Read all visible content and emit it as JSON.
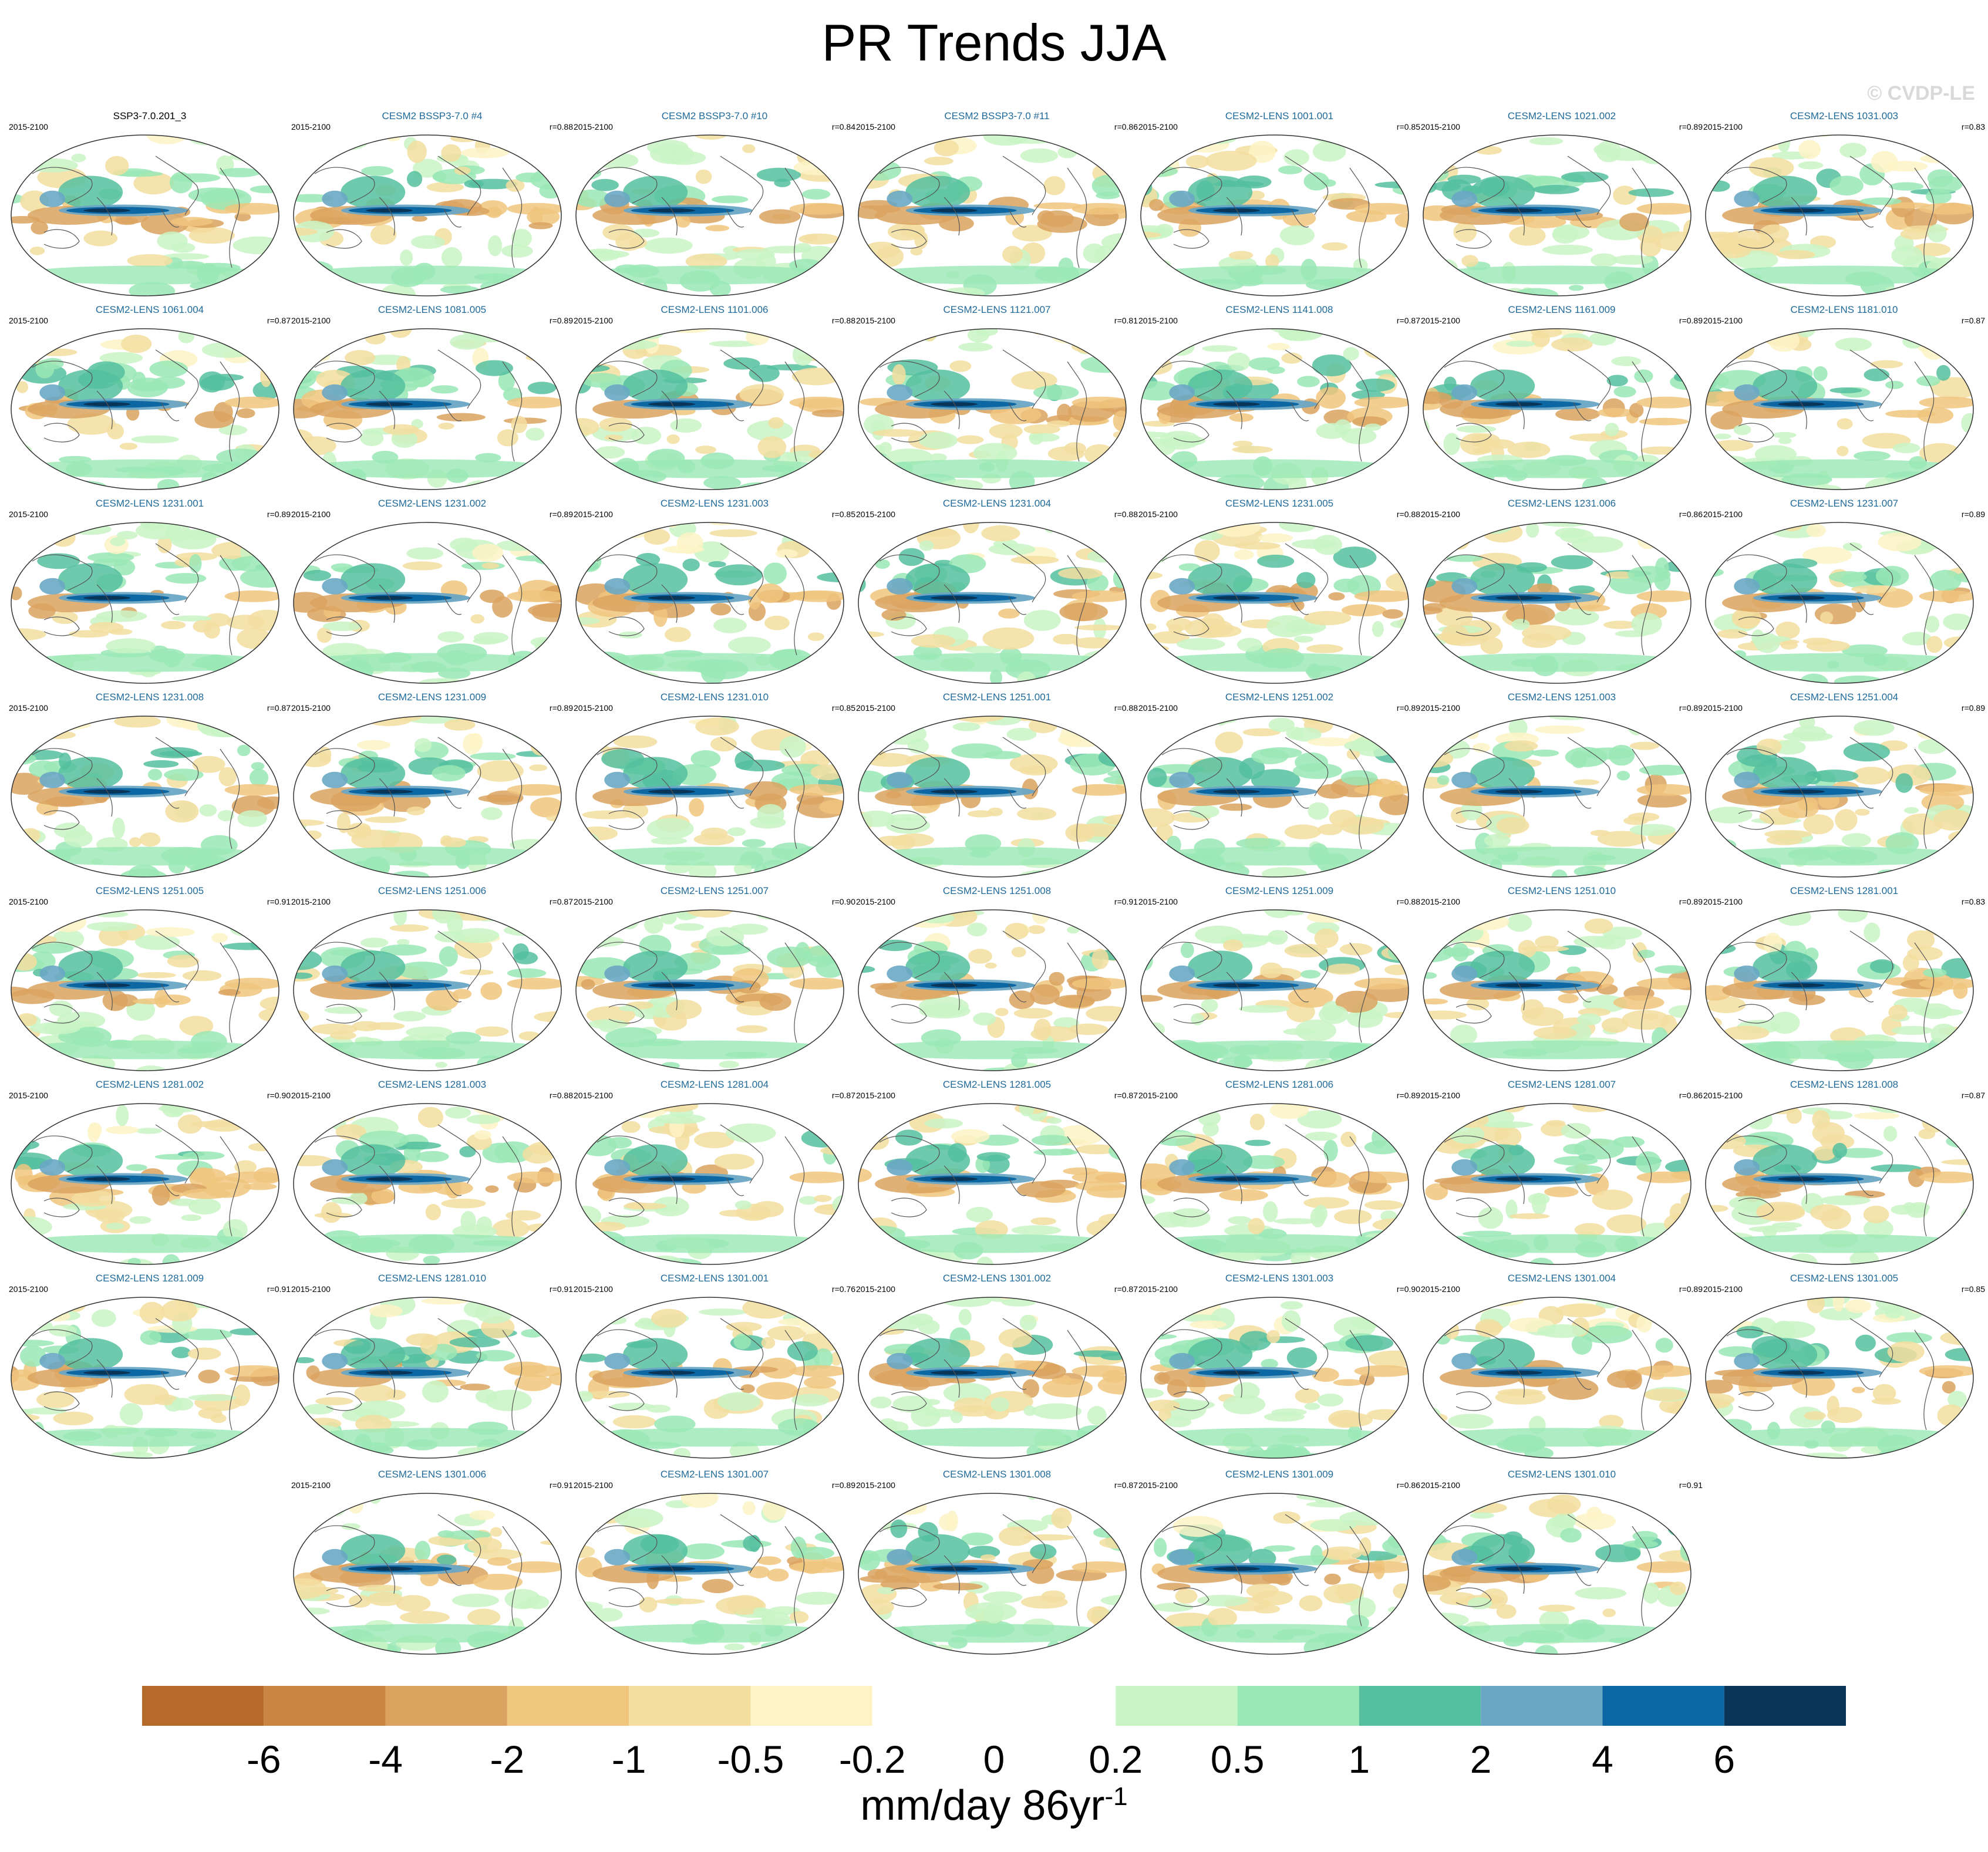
{
  "title": "PR Trends JJA",
  "watermark": "© CVDP-LE",
  "colorbar": {
    "unit": "mm/day 86yr",
    "unit_exp": "-1",
    "ticks": [
      "-6",
      "-4",
      "-2",
      "-1",
      "-0.5",
      "-0.2",
      "0",
      "0.2",
      "0.5",
      "1",
      "2",
      "4",
      "6"
    ],
    "colors": [
      "#b5692b",
      "#c98541",
      "#dba35f",
      "#f0c57e",
      "#f3dea0",
      "#fdf3c5",
      "#ffffff",
      "#ffffff",
      "#c9f5c6",
      "#9ae8b5",
      "#55bf9f",
      "#6aa7c4",
      "#0d67a3",
      "#083558"
    ]
  },
  "chart_data": {
    "type": "map-panel-grid",
    "title": "PR Trends JJA",
    "unit": "mm/day 86yr-1",
    "panels": [
      {
        "name": "SSP3-7.0.201_3",
        "period": "2015-2100",
        "r": "",
        "obs": true
      },
      {
        "name": "CESM2 BSSP3-7.0 #4",
        "period": "2015-2100",
        "r": "r=0.88"
      },
      {
        "name": "CESM2 BSSP3-7.0 #10",
        "period": "2015-2100",
        "r": "r=0.84"
      },
      {
        "name": "CESM2 BSSP3-7.0 #11",
        "period": "2015-2100",
        "r": "r=0.86"
      },
      {
        "name": "CESM2-LENS 1001.001",
        "period": "2015-2100",
        "r": "r=0.85"
      },
      {
        "name": "CESM2-LENS 1021.002",
        "period": "2015-2100",
        "r": "r=0.89"
      },
      {
        "name": "CESM2-LENS 1031.003",
        "period": "2015-2100",
        "r": "r=0.83"
      },
      {
        "name": "CESM2-LENS 1061.004",
        "period": "2015-2100",
        "r": "r=0.87"
      },
      {
        "name": "CESM2-LENS 1081.005",
        "period": "2015-2100",
        "r": "r=0.89"
      },
      {
        "name": "CESM2-LENS 1101.006",
        "period": "2015-2100",
        "r": "r=0.88"
      },
      {
        "name": "CESM2-LENS 1121.007",
        "period": "2015-2100",
        "r": "r=0.81"
      },
      {
        "name": "CESM2-LENS 1141.008",
        "period": "2015-2100",
        "r": "r=0.87"
      },
      {
        "name": "CESM2-LENS 1161.009",
        "period": "2015-2100",
        "r": "r=0.89"
      },
      {
        "name": "CESM2-LENS 1181.010",
        "period": "2015-2100",
        "r": "r=0.87"
      },
      {
        "name": "CESM2-LENS 1231.001",
        "period": "2015-2100",
        "r": "r=0.89"
      },
      {
        "name": "CESM2-LENS 1231.002",
        "period": "2015-2100",
        "r": "r=0.89"
      },
      {
        "name": "CESM2-LENS 1231.003",
        "period": "2015-2100",
        "r": "r=0.85"
      },
      {
        "name": "CESM2-LENS 1231.004",
        "period": "2015-2100",
        "r": "r=0.88"
      },
      {
        "name": "CESM2-LENS 1231.005",
        "period": "2015-2100",
        "r": "r=0.88"
      },
      {
        "name": "CESM2-LENS 1231.006",
        "period": "2015-2100",
        "r": "r=0.86"
      },
      {
        "name": "CESM2-LENS 1231.007",
        "period": "2015-2100",
        "r": "r=0.89"
      },
      {
        "name": "CESM2-LENS 1231.008",
        "period": "2015-2100",
        "r": "r=0.87"
      },
      {
        "name": "CESM2-LENS 1231.009",
        "period": "2015-2100",
        "r": "r=0.89"
      },
      {
        "name": "CESM2-LENS 1231.010",
        "period": "2015-2100",
        "r": "r=0.85"
      },
      {
        "name": "CESM2-LENS 1251.001",
        "period": "2015-2100",
        "r": "r=0.88"
      },
      {
        "name": "CESM2-LENS 1251.002",
        "period": "2015-2100",
        "r": "r=0.89"
      },
      {
        "name": "CESM2-LENS 1251.003",
        "period": "2015-2100",
        "r": "r=0.89"
      },
      {
        "name": "CESM2-LENS 1251.004",
        "period": "2015-2100",
        "r": "r=0.89"
      },
      {
        "name": "CESM2-LENS 1251.005",
        "period": "2015-2100",
        "r": "r=0.91"
      },
      {
        "name": "CESM2-LENS 1251.006",
        "period": "2015-2100",
        "r": "r=0.87"
      },
      {
        "name": "CESM2-LENS 1251.007",
        "period": "2015-2100",
        "r": "r=0.90"
      },
      {
        "name": "CESM2-LENS 1251.008",
        "period": "2015-2100",
        "r": "r=0.91"
      },
      {
        "name": "CESM2-LENS 1251.009",
        "period": "2015-2100",
        "r": "r=0.88"
      },
      {
        "name": "CESM2-LENS 1251.010",
        "period": "2015-2100",
        "r": "r=0.89"
      },
      {
        "name": "CESM2-LENS 1281.001",
        "period": "2015-2100",
        "r": "r=0.83"
      },
      {
        "name": "CESM2-LENS 1281.002",
        "period": "2015-2100",
        "r": "r=0.90"
      },
      {
        "name": "CESM2-LENS 1281.003",
        "period": "2015-2100",
        "r": "r=0.88"
      },
      {
        "name": "CESM2-LENS 1281.004",
        "period": "2015-2100",
        "r": "r=0.87"
      },
      {
        "name": "CESM2-LENS 1281.005",
        "period": "2015-2100",
        "r": "r=0.87"
      },
      {
        "name": "CESM2-LENS 1281.006",
        "period": "2015-2100",
        "r": "r=0.89"
      },
      {
        "name": "CESM2-LENS 1281.007",
        "period": "2015-2100",
        "r": "r=0.86"
      },
      {
        "name": "CESM2-LENS 1281.008",
        "period": "2015-2100",
        "r": "r=0.87"
      },
      {
        "name": "CESM2-LENS 1281.009",
        "period": "2015-2100",
        "r": "r=0.91"
      },
      {
        "name": "CESM2-LENS 1281.010",
        "period": "2015-2100",
        "r": "r=0.91"
      },
      {
        "name": "CESM2-LENS 1301.001",
        "period": "2015-2100",
        "r": "r=0.76"
      },
      {
        "name": "CESM2-LENS 1301.002",
        "period": "2015-2100",
        "r": "r=0.87"
      },
      {
        "name": "CESM2-LENS 1301.003",
        "period": "2015-2100",
        "r": "r=0.90"
      },
      {
        "name": "CESM2-LENS 1301.004",
        "period": "2015-2100",
        "r": "r=0.89"
      },
      {
        "name": "CESM2-LENS 1301.005",
        "period": "2015-2100",
        "r": "r=0.85"
      },
      {
        "name": "CESM2-LENS 1301.006",
        "period": "2015-2100",
        "r": "r=0.91"
      },
      {
        "name": "CESM2-LENS 1301.007",
        "period": "2015-2100",
        "r": "r=0.89"
      },
      {
        "name": "CESM2-LENS 1301.008",
        "period": "2015-2100",
        "r": "r=0.87"
      },
      {
        "name": "CESM2-LENS 1301.009",
        "period": "2015-2100",
        "r": "r=0.86"
      },
      {
        "name": "CESM2-LENS 1301.010",
        "period": "2015-2100",
        "r": "r=0.91"
      }
    ]
  }
}
